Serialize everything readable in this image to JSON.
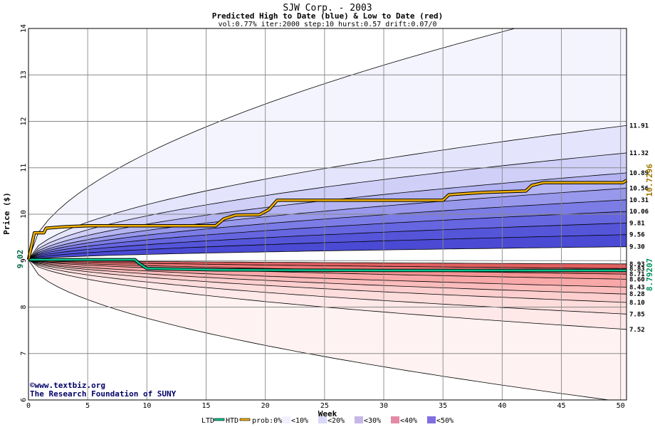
{
  "chart_data": {
    "type": "area",
    "title": "SJW Corp. - 2003",
    "subtitle": "Predicted High to Date (blue) &  Low to Date (red)",
    "params": "vol:0.77% iter:2000 step:10 hurst:0.57 drift:0.07/0",
    "xlabel": "Week",
    "ylabel": "Price ($)",
    "xlim": [
      0,
      50.5
    ],
    "ylim": [
      6,
      14
    ],
    "x_ticks": [
      0,
      5,
      10,
      15,
      20,
      25,
      30,
      35,
      40,
      45,
      50
    ],
    "y_ticks": [
      6,
      7,
      8,
      9,
      10,
      11,
      12,
      13,
      14
    ],
    "start_price_label": "9.02",
    "start_price": 9.02,
    "high_band_end_labels": [
      "11.91",
      "11.32",
      "10.89",
      "10.56",
      "10.31",
      "10.06",
      "9.81",
      "9.56",
      "9.30"
    ],
    "low_band_end_labels": [
      "8.93",
      "8.83",
      "8.71",
      "8.60",
      "8.43",
      "8.28",
      "8.10",
      "7.85",
      "7.52"
    ],
    "high_bands_end": [
      14.6,
      11.91,
      11.32,
      10.89,
      10.56,
      10.31,
      10.06,
      9.81,
      9.56,
      9.3
    ],
    "low_bands_end": [
      8.93,
      8.83,
      8.71,
      8.6,
      8.43,
      8.28,
      8.1,
      7.85,
      7.52,
      5.95
    ],
    "high_band_fills": [
      "#f4f4ff",
      "#e4e4fc",
      "#cfcff8",
      "#b4b4f2",
      "#9898ec",
      "#7c7ce6",
      "#6666e0",
      "#5555da",
      "#4a4ad4"
    ],
    "low_band_fills": [
      "#e06060",
      "#ee7878",
      "#f59494",
      "#f8a8a8",
      "#fbbcbc",
      "#fccece",
      "#fddcdc",
      "#fee8e8",
      "#fff2f2"
    ],
    "htd_series": {
      "name": "HTD",
      "color": "#f0b000",
      "end_label": "10.7296",
      "points": [
        [
          0,
          9.02
        ],
        [
          0.5,
          9.6
        ],
        [
          1.3,
          9.6
        ],
        [
          1.5,
          9.7
        ],
        [
          3,
          9.73
        ],
        [
          5,
          9.75
        ],
        [
          15.8,
          9.75
        ],
        [
          16.5,
          9.9
        ],
        [
          17.5,
          9.98
        ],
        [
          19.5,
          9.99
        ],
        [
          20.3,
          10.1
        ],
        [
          21,
          10.3
        ],
        [
          25,
          10.3
        ],
        [
          35,
          10.3
        ],
        [
          35.5,
          10.42
        ],
        [
          38.5,
          10.47
        ],
        [
          42,
          10.5
        ],
        [
          42.5,
          10.62
        ],
        [
          43.5,
          10.68
        ],
        [
          50.2,
          10.68
        ],
        [
          50.5,
          10.73
        ]
      ]
    },
    "ltd_series": {
      "name": "LTD",
      "color": "#00c890",
      "end_label": "8.79207",
      "points": [
        [
          0,
          9.02
        ],
        [
          5,
          9.02
        ],
        [
          9,
          9.02
        ],
        [
          9.3,
          8.95
        ],
        [
          10,
          8.83
        ],
        [
          16,
          8.8
        ],
        [
          30,
          8.79
        ],
        [
          40,
          8.79
        ],
        [
          50.5,
          8.79
        ]
      ]
    },
    "legend": {
      "ltd": "LTD",
      "htd": "HTD",
      "prob_label": "prob:0%",
      "levels": [
        {
          "label": "<10%",
          "color": "#f0f0ff"
        },
        {
          "label": "<20%",
          "color": "#d8d8f8"
        },
        {
          "label": "<30%",
          "color": "#c6b8e6"
        },
        {
          "label": "<40%",
          "color": "#e48aa6"
        },
        {
          "label": "<50%",
          "color": "#7f6fe2"
        }
      ]
    },
    "credits": [
      "www.textbiz.org",
      "The Research Foundation of SUNY"
    ],
    "grid": true
  }
}
